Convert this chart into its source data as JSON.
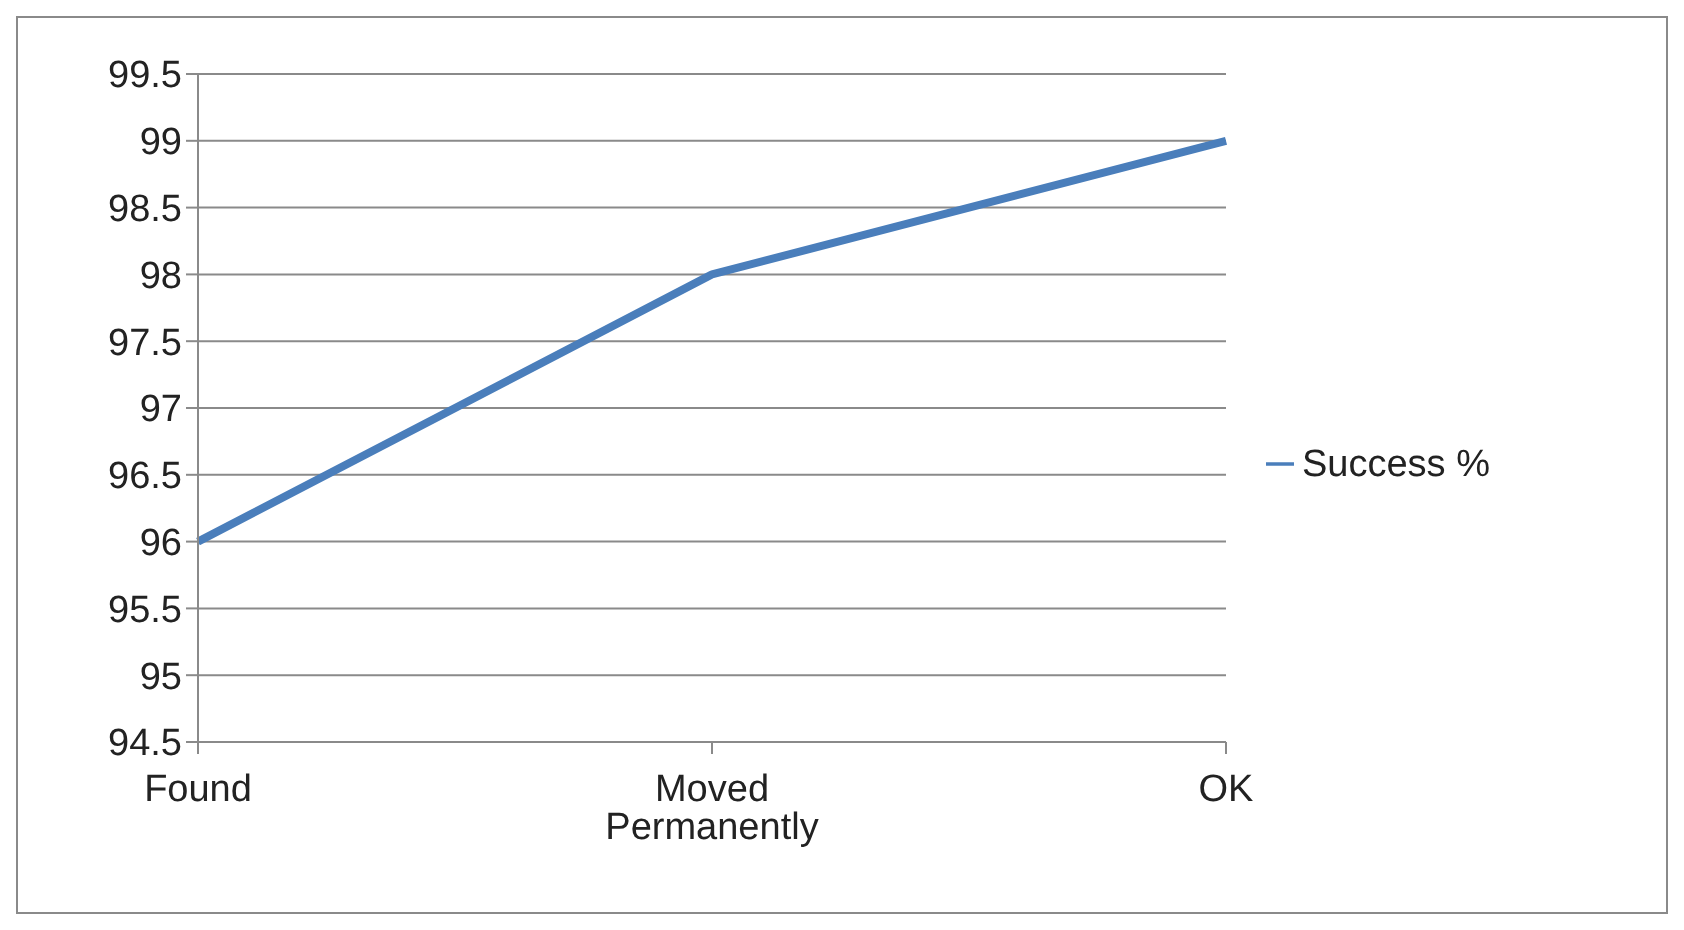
{
  "chart_data": {
    "type": "line",
    "categories": [
      "Found",
      "Moved Permanently",
      "OK"
    ],
    "series": [
      {
        "name": "Success %",
        "color": "#4a7ebb",
        "values": [
          96,
          98,
          99
        ]
      }
    ],
    "ylim": [
      94.5,
      99.5
    ],
    "yticks": [
      94.5,
      95,
      95.5,
      96,
      96.5,
      97,
      97.5,
      98,
      98.5,
      99,
      99.5
    ],
    "grid": "y",
    "legend": "right",
    "marker": "none",
    "line_style": "solid"
  }
}
